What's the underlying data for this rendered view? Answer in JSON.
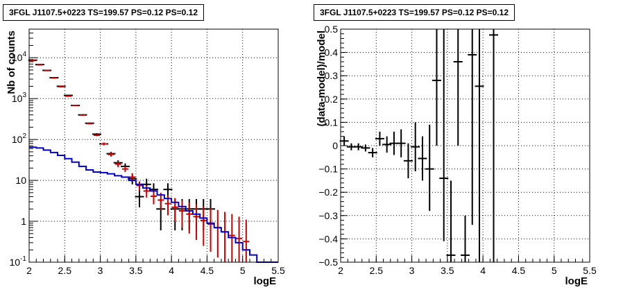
{
  "chart_data": [
    {
      "type": "line",
      "title": "3FGL J1107.5+0223 TS=199.57 PS=0.12 PS=0.12",
      "xlabel": "logE",
      "ylabel": "Nb of counts",
      "xlim": [
        2,
        5.5
      ],
      "ylim": [
        0.1,
        50000
      ],
      "yscale": "log",
      "grid": true,
      "x_ticks": [
        "2",
        "2.5",
        "3",
        "3.5",
        "4",
        "4.5",
        "5",
        "5.5"
      ],
      "y_ticks": [
        "10^{-1}",
        "1",
        "10",
        "10^{2}",
        "10^{3}",
        "10^{4}"
      ],
      "colors": {
        "data": "#000000",
        "model_total": "#cc0000",
        "component": "#0000cc"
      },
      "series": [
        {
          "style": "errorbar",
          "x": [
            2.05,
            2.15,
            2.25,
            2.35,
            2.45,
            2.55,
            2.65,
            2.75,
            2.85,
            2.95,
            3.05,
            3.15,
            3.25,
            3.35,
            3.45,
            3.55,
            3.65,
            3.75,
            3.85,
            3.95,
            4.05,
            4.15,
            4.25,
            4.35,
            4.45,
            4.55
          ],
          "y": [
            8700,
            6800,
            4900,
            3250,
            2000,
            1200,
            680,
            400,
            250,
            135,
            78,
            45,
            27,
            22,
            11,
            4,
            8,
            6,
            2,
            6,
            2,
            2,
            2,
            2,
            2,
            2
          ],
          "ylo": [
            8500,
            6650,
            4800,
            3200,
            1960,
            1170,
            660,
            385,
            240,
            128,
            72,
            40,
            23,
            18,
            8,
            2.2,
            5,
            3.6,
            0.6,
            3.6,
            0.6,
            0.6,
            0.6,
            0.6,
            0.6,
            0.6
          ],
          "yhi": [
            8900,
            6950,
            5000,
            3300,
            2040,
            1230,
            700,
            415,
            260,
            142,
            84,
            50,
            31,
            26,
            14,
            6,
            11,
            8.5,
            3.5,
            8.5,
            3.5,
            3.5,
            3.5,
            3.5,
            3.5,
            3.5
          ]
        },
        {
          "style": "errorbar",
          "x": [
            2.05,
            2.15,
            2.25,
            2.35,
            2.45,
            2.55,
            2.65,
            2.75,
            2.85,
            2.95,
            3.05,
            3.15,
            3.25,
            3.35,
            3.45,
            3.55,
            3.65,
            3.75,
            3.85,
            3.95,
            4.05,
            4.15,
            4.25,
            4.35,
            4.45,
            4.55,
            4.65,
            4.75,
            4.85,
            4.95,
            5.05
          ],
          "y": [
            8500,
            6700,
            4850,
            3200,
            1950,
            1150,
            680,
            395,
            245,
            127,
            78,
            43,
            25,
            19,
            12,
            7.5,
            5.5,
            4.1,
            3.3,
            2.7,
            2.2,
            1.8,
            1.5,
            1.3,
            1.05,
            0.85,
            0.7,
            0.55,
            0.45,
            0.38,
            0.32
          ],
          "ylo": [
            8300,
            6550,
            4750,
            3150,
            1920,
            1120,
            660,
            380,
            235,
            120,
            73,
            38,
            21,
            16,
            9.5,
            5.5,
            3.8,
            2.6,
            1.9,
            1.4,
            1.0,
            0.7,
            0.5,
            0.35,
            0.25,
            0.18,
            0.13,
            0.1,
            0.1,
            0.1,
            0.1
          ],
          "yhi": [
            8700,
            6850,
            4950,
            3250,
            1980,
            1180,
            700,
            410,
            255,
            134,
            83,
            48,
            29,
            22,
            15,
            9.5,
            7.5,
            5.8,
            5.0,
            4.3,
            3.7,
            3.2,
            2.9,
            2.6,
            2.3,
            2.1,
            1.9,
            1.7,
            1.5,
            1.3,
            1.1
          ]
        },
        {
          "style": "step",
          "edges": [
            2.0,
            2.1,
            2.2,
            2.3,
            2.4,
            2.5,
            2.6,
            2.7,
            2.8,
            2.9,
            3.0,
            3.1,
            3.2,
            3.3,
            3.4,
            3.5,
            3.6,
            3.7,
            3.8,
            3.9,
            4.0,
            4.1,
            4.2,
            4.3,
            4.4,
            4.5,
            4.6,
            4.7,
            4.8,
            4.9,
            5.0,
            5.1,
            5.2,
            5.3,
            5.4,
            5.5
          ],
          "y": [
            65,
            62,
            55,
            48,
            41,
            34,
            28,
            22,
            18,
            16,
            15.5,
            14.5,
            13,
            12,
            10,
            8,
            6.5,
            5.5,
            4.4,
            3.6,
            2.9,
            2.3,
            1.8,
            1.5,
            1.2,
            0.9,
            0.7,
            0.55,
            0.4,
            0.3,
            0.2,
            0.15,
            0.1,
            0.1,
            0.1
          ]
        }
      ]
    },
    {
      "type": "scatter",
      "title": "3FGL J1107.5+0223 TS=199.57 PS=0.12 PS=0.12",
      "xlabel": "logE",
      "ylabel": "(data-model)/model",
      "xlim": [
        2,
        5.5
      ],
      "ylim": [
        -0.5,
        0.5
      ],
      "grid": true,
      "x_ticks": [
        "2",
        "2.5",
        "3",
        "3.5",
        "4",
        "4.5",
        "5",
        "5.5"
      ],
      "y_ticks": [
        "−0.5",
        "−0.4",
        "−0.3",
        "−0.2",
        "−0.1",
        "0",
        "0.1",
        "0.2",
        "0.3",
        "0.4",
        "0.5"
      ],
      "colors": {
        "data": "#000000"
      },
      "series": [
        {
          "style": "errorbar",
          "x": [
            2.05,
            2.15,
            2.25,
            2.35,
            2.45,
            2.55,
            2.65,
            2.75,
            2.85,
            2.95,
            3.05,
            3.15,
            3.25,
            3.35,
            3.45,
            3.55,
            3.65,
            3.75,
            3.85,
            3.95,
            4.15
          ],
          "y": [
            0.02,
            -0.005,
            -0.005,
            -0.01,
            -0.03,
            0.03,
            0.005,
            0.01,
            0.01,
            -0.065,
            -0.005,
            -0.055,
            -0.1,
            0.28,
            -0.14,
            -0.47,
            0.36,
            -0.47,
            0.39,
            0.255,
            0.475
          ],
          "ylo": [
            0.0,
            -0.02,
            -0.02,
            -0.025,
            -0.05,
            0.0,
            -0.03,
            -0.04,
            -0.05,
            -0.14,
            -0.11,
            -0.15,
            -0.28,
            0.0,
            -0.41,
            -0.5,
            0.0,
            -0.5,
            -0.34,
            -0.5,
            -0.5
          ],
          "yhi": [
            0.04,
            0.01,
            0.01,
            0.005,
            -0.01,
            0.06,
            0.04,
            0.06,
            0.07,
            0.01,
            0.1,
            0.04,
            0.09,
            0.5,
            0.5,
            -0.15,
            0.5,
            -0.3,
            0.5,
            0.5,
            0.5
          ]
        }
      ]
    }
  ]
}
